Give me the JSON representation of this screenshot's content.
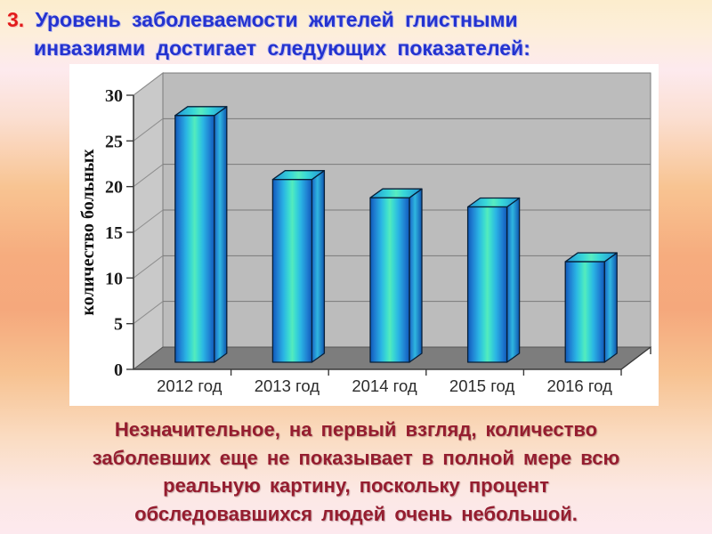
{
  "title": {
    "number": "3.",
    "line1": "Уровень заболеваемости жителей глистными",
    "line2": "инвазиями достигает следующих показателей:"
  },
  "chart_data": {
    "type": "bar",
    "categories": [
      "2012 год",
      "2013 год",
      "2014 год",
      "2015 год",
      "2016 год"
    ],
    "values": [
      27,
      20,
      18,
      17,
      11
    ],
    "title": "",
    "xlabel": "",
    "ylabel": "количество больных",
    "ylim": [
      0,
      30
    ],
    "y_ticks": [
      0,
      5,
      10,
      15,
      20,
      25,
      30
    ],
    "grid": true,
    "legend": false,
    "style_3d": true,
    "colors": {
      "bar_edge": "#1058b8",
      "bar_mid": "#2ab4e4",
      "bar_core": "#55ebbc",
      "back_wall": "#bcbcbc",
      "side_wall": "#c9c9c9",
      "floor": "#7d7d7d",
      "gridline": "#7a7a7a",
      "axis": "#3a3a3a",
      "tick_label": "#1a1a1a",
      "category_label": "#2b2b2b"
    }
  },
  "footer": {
    "lines": [
      "Незначительное, на первый взгляд, количество",
      "заболевших еще не показывает в полной мере всю",
      "реальную картину, поскольку процент",
      "обследовавшихся людей очень небольшой."
    ]
  },
  "accent_colors": {
    "title_blue": "#2433cf",
    "title_number_red": "#e21b1b",
    "footer_maroon": "#951d2f"
  }
}
